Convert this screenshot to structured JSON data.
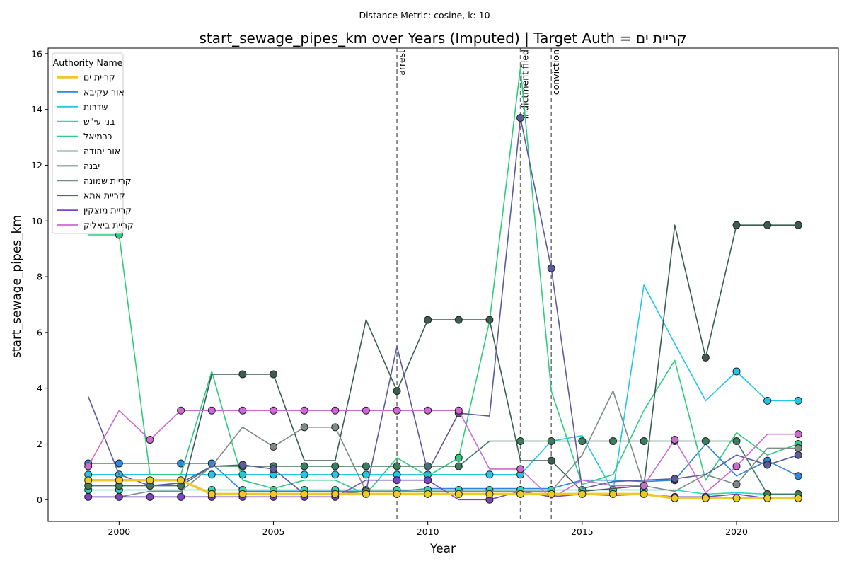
{
  "chart_data": {
    "type": "line",
    "suptitle": "Distance Metric: cosine, k: 10",
    "title": "start_sewage_pipes_km over Years (Imputed) | Target Auth = קריית ים",
    "xlabel": "Year",
    "ylabel": "start_sewage_pipes_km",
    "xlim": [
      1997.7,
      2023.3
    ],
    "ylim": [
      -0.78,
      16.2
    ],
    "xticks": [
      2000,
      2005,
      2010,
      2015,
      2020
    ],
    "yticks": [
      0,
      2,
      4,
      6,
      8,
      10,
      12,
      14,
      16
    ],
    "grid": false,
    "legend_title": "Authority Name",
    "legend_position": "top-left",
    "events": [
      {
        "x": 2009,
        "label": "arrest"
      },
      {
        "x": 2013,
        "label": "indictment filed"
      },
      {
        "x": 2014,
        "label": "conviction"
      }
    ],
    "x": [
      1999,
      2000,
      2001,
      2002,
      2003,
      2004,
      2005,
      2006,
      2007,
      2008,
      2009,
      2010,
      2011,
      2012,
      2013,
      2014,
      2015,
      2016,
      2017,
      2018,
      2019,
      2020,
      2021,
      2022
    ],
    "series": [
      {
        "name": "קריית ים",
        "color": "#f0c929",
        "target": true,
        "values": [
          0.7,
          0.7,
          0.7,
          0.7,
          0.2,
          0.2,
          0.2,
          0.2,
          0.2,
          0.2,
          0.2,
          0.2,
          0.2,
          0.2,
          0.2,
          0.2,
          0.2,
          0.2,
          0.2,
          0.05,
          0.05,
          0.05,
          0.05,
          0.05
        ],
        "markers": [
          1999,
          2000,
          2001,
          2002,
          2003,
          2004,
          2005,
          2006,
          2007,
          2008,
          2009,
          2010,
          2011,
          2012,
          2013,
          2014,
          2015,
          2016,
          2017,
          2018,
          2019,
          2020,
          2021,
          2022
        ]
      },
      {
        "name": "אור עקיבא",
        "color": "#2e86de",
        "values": [
          1.3,
          1.3,
          1.3,
          1.3,
          1.3,
          0.3,
          0.3,
          0.3,
          0.3,
          0.3,
          0.3,
          0.4,
          0.4,
          0.4,
          0.4,
          0.4,
          0.7,
          0.7,
          0.65,
          0.7,
          2.0,
          0.85,
          1.4,
          0.85
        ],
        "markers": [
          1999,
          2000,
          2002,
          2003,
          2018,
          2021,
          2022
        ]
      },
      {
        "name": "שדרות",
        "color": "#22c7e6",
        "values": [
          0.9,
          0.9,
          0.9,
          0.9,
          0.9,
          0.9,
          0.9,
          0.9,
          0.9,
          0.9,
          0.9,
          0.9,
          0.9,
          0.9,
          0.9,
          2.1,
          2.3,
          0.3,
          7.7,
          5.6,
          3.55,
          4.6,
          3.55,
          3.55
        ],
        "markers": [
          1999,
          2000,
          2003,
          2004,
          2005,
          2006,
          2007,
          2008,
          2009,
          2010,
          2012,
          2013,
          2020,
          2021,
          2022
        ]
      },
      {
        "name": "בני עי\"ש",
        "color": "#2cd8b8",
        "values": [
          0.35,
          0.35,
          0.35,
          0.35,
          0.35,
          0.35,
          0.35,
          0.35,
          0.35,
          0.35,
          0.35,
          0.35,
          0.35,
          0.35,
          0.35,
          0.35,
          0.35,
          0.35,
          0.35,
          0.35,
          0.2,
          0.25,
          0.2,
          0.2
        ],
        "markers": [
          1999,
          2000,
          2003,
          2004,
          2005,
          2006,
          2007,
          2008,
          2009,
          2010,
          2011,
          2012,
          2013,
          2014,
          2015,
          2016,
          2017
        ]
      },
      {
        "name": "כרמיאל",
        "color": "#2ecc7f",
        "values": [
          9.5,
          9.5,
          0.9,
          0.9,
          4.6,
          0.7,
          0.4,
          0.7,
          0.7,
          0.2,
          1.5,
          0.85,
          1.5,
          6.4,
          15.5,
          3.9,
          0.55,
          0.9,
          3.2,
          5.0,
          0.7,
          2.4,
          1.6,
          2.0
        ],
        "markers": [
          2000,
          2011,
          2022
        ]
      },
      {
        "name": "אור יהודה",
        "color": "#3b7d5f",
        "values": [
          0.5,
          0.5,
          0.5,
          0.5,
          1.2,
          1.2,
          1.2,
          1.2,
          1.2,
          1.2,
          1.2,
          1.2,
          1.2,
          2.1,
          2.1,
          2.1,
          2.1,
          2.1,
          2.1,
          2.1,
          2.1,
          2.1,
          0.2,
          0.2
        ],
        "markers": [
          1999,
          2000,
          2001,
          2002,
          2004,
          2005,
          2006,
          2007,
          2008,
          2009,
          2010,
          2011,
          2013,
          2014,
          2015,
          2016,
          2017,
          2018,
          2019,
          2020,
          2021,
          2022
        ]
      },
      {
        "name": "יבנה",
        "color": "#3b5e51",
        "values": [
          0.1,
          0.1,
          0.1,
          0.1,
          4.5,
          4.5,
          4.5,
          1.4,
          1.4,
          6.45,
          3.9,
          6.45,
          6.45,
          6.45,
          1.4,
          1.4,
          0.3,
          0.4,
          0.5,
          9.85,
          5.1,
          9.85,
          9.85,
          9.85
        ],
        "markers": [
          2004,
          2005,
          2009,
          2010,
          2011,
          2012,
          2014,
          2019,
          2020,
          2021,
          2022
        ]
      },
      {
        "name": "קריית שמונה",
        "color": "#7f8c86",
        "values": [
          0.1,
          0.1,
          0.3,
          0.3,
          1.2,
          2.6,
          1.9,
          2.6,
          2.6,
          0.3,
          0.3,
          0.3,
          0.3,
          0.3,
          0.3,
          0.3,
          1.6,
          3.9,
          0.5,
          0.3,
          0.9,
          0.55,
          1.85,
          1.85
        ],
        "markers": [
          2005,
          2006,
          2007,
          2008,
          2020,
          2022
        ]
      },
      {
        "name": "קריית אתא",
        "color": "#5c5b9c",
        "values": [
          3.7,
          0.9,
          0.5,
          0.6,
          1.2,
          1.25,
          1.1,
          0.2,
          0.2,
          0.3,
          5.5,
          1.0,
          3.1,
          3.0,
          13.7,
          8.3,
          0.4,
          0.65,
          0.7,
          0.75,
          0.9,
          1.6,
          1.25,
          1.6
        ],
        "markers": [
          2004,
          2005,
          2011,
          2013,
          2014,
          2018,
          2021,
          2022
        ]
      },
      {
        "name": "קריית מוצקין",
        "color": "#7b46c4",
        "values": [
          0.1,
          0.1,
          0.1,
          0.1,
          0.1,
          0.1,
          0.1,
          0.1,
          0.1,
          0.7,
          0.7,
          0.7,
          0.0,
          0.0,
          0.3,
          0.1,
          0.2,
          0.15,
          0.2,
          0.1,
          0.1,
          0.2,
          0.05,
          0.1
        ],
        "markers": [
          1999,
          2000,
          2001,
          2002,
          2003,
          2004,
          2005,
          2006,
          2007,
          2009,
          2010,
          2012,
          2018,
          2019
        ]
      },
      {
        "name": "קריית ביאליק",
        "color": "#cc6ad2",
        "values": [
          1.2,
          3.2,
          2.15,
          3.2,
          3.2,
          3.2,
          3.2,
          3.2,
          3.2,
          3.2,
          3.2,
          3.2,
          3.2,
          1.1,
          1.1,
          0.05,
          0.7,
          0.5,
          0.5,
          2.15,
          0.25,
          1.2,
          2.35,
          2.35
        ],
        "markers": [
          1999,
          2001,
          2002,
          2003,
          2004,
          2005,
          2006,
          2007,
          2008,
          2009,
          2010,
          2011,
          2013,
          2017,
          2018,
          2020,
          2022
        ]
      }
    ]
  }
}
